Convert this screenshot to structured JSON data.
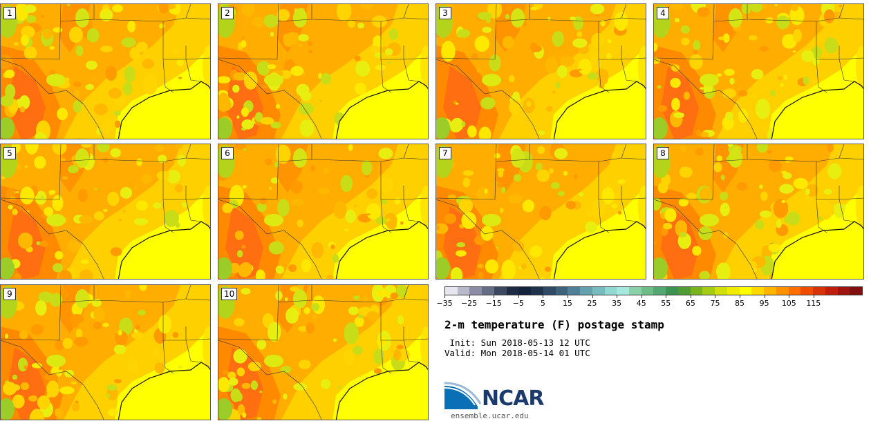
{
  "panels": [
    {
      "label": "1"
    },
    {
      "label": "2"
    },
    {
      "label": "3"
    },
    {
      "label": "4"
    },
    {
      "label": "5"
    },
    {
      "label": "6"
    },
    {
      "label": "7"
    },
    {
      "label": "8"
    },
    {
      "label": "9"
    },
    {
      "label": "10"
    }
  ],
  "colorbar": {
    "colors": [
      "#e6e6ee",
      "#b9b9cc",
      "#8c8ca6",
      "#646e86",
      "#3c4860",
      "#1e2a44",
      "#14223c",
      "#1e324c",
      "#2e4a64",
      "#3e627c",
      "#508098",
      "#64a0ae",
      "#78bcc0",
      "#90d8d2",
      "#a4e8de",
      "#8ad0a8",
      "#6ebc88",
      "#52a870",
      "#3c9450",
      "#4e9c32",
      "#78b41e",
      "#a4cc14",
      "#d2e00a",
      "#f0ec00",
      "#ffff00",
      "#ffd800",
      "#ffb400",
      "#ff9000",
      "#ff6e00",
      "#f04c00",
      "#d83208",
      "#c01e0c",
      "#a01410",
      "#801010"
    ],
    "tick_values": [
      "−35",
      "−25",
      "−15",
      "−5",
      "5",
      "15",
      "25",
      "35",
      "45",
      "55",
      "65",
      "75",
      "85",
      "95",
      "105",
      "115"
    ],
    "min": -35,
    "max": 135,
    "step": 5,
    "tick_every": 10
  },
  "title": "2-m temperature (F) postage stamp",
  "init": " Init: Sun 2018-05-13 12 UTC",
  "valid": "Valid: Mon 2018-05-14 01 UTC",
  "logo": {
    "text": "NCAR",
    "icon": "ncar-logo-icon"
  },
  "url": "ensemble.ucar.edu"
}
